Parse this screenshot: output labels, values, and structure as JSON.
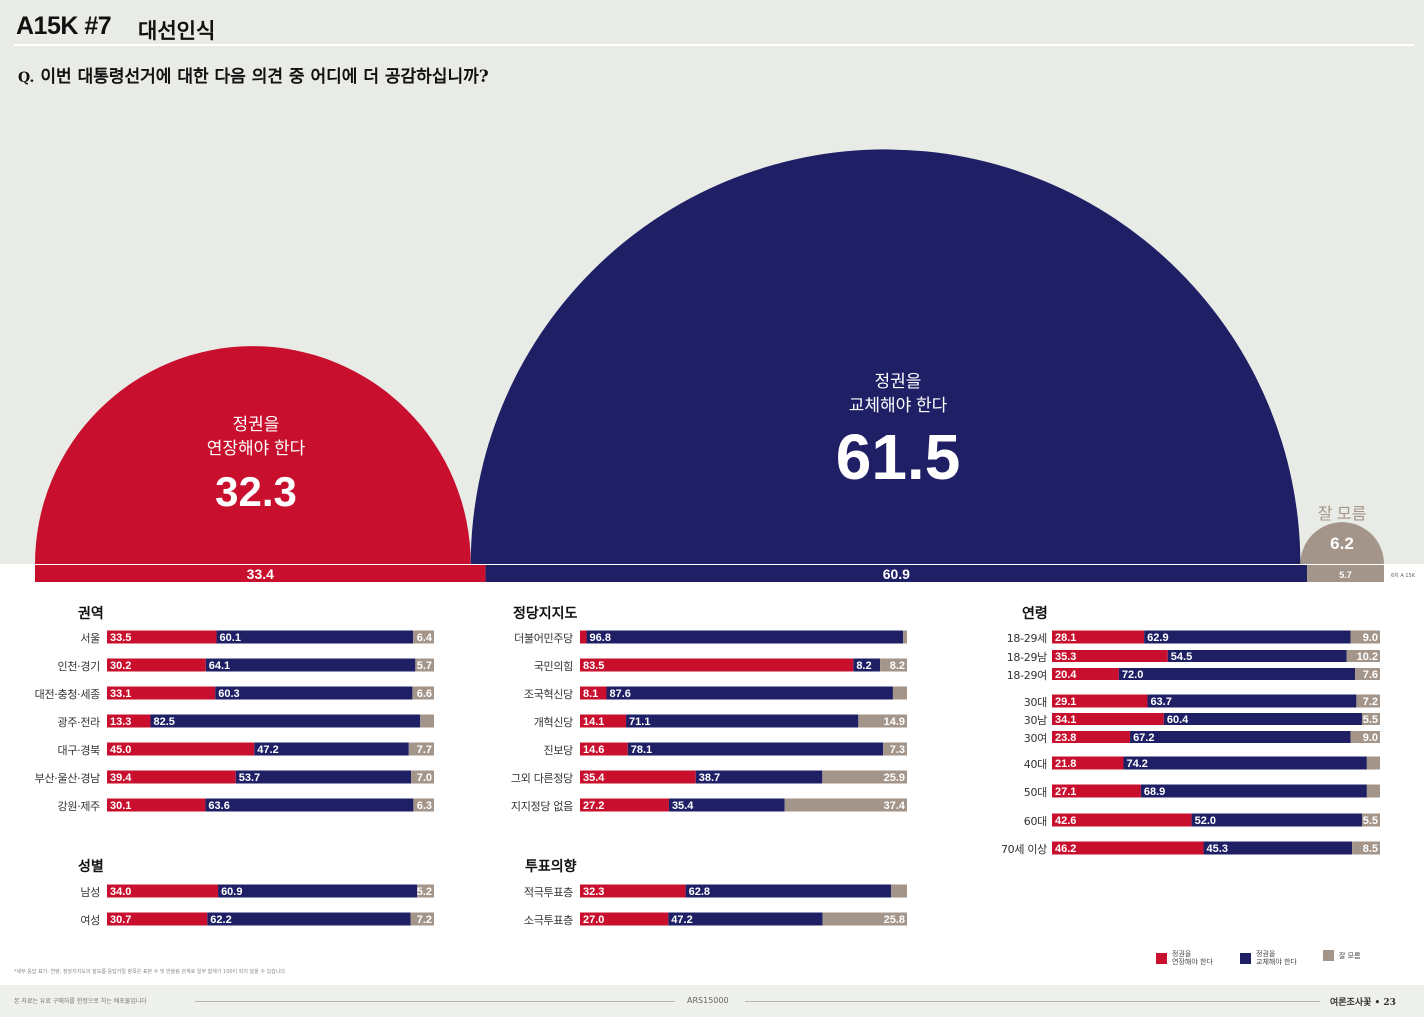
{
  "header": {
    "code": "A15K #7",
    "title": "대선인식"
  },
  "question": {
    "marker": "Q.",
    "text": "이번 대통령선거에 대한 다음 의견 중 어디에 더 공감하십니까?"
  },
  "colors": {
    "extend": "#c8102e",
    "replace": "#1f1f66",
    "unknown": "#a3958a",
    "background_top": "#e9ece6"
  },
  "chart_data": {
    "type": "bar",
    "title": "대선인식",
    "headline": {
      "extend": {
        "label_line1": "정권을",
        "label_line2": "연장해야 한다",
        "value": "32.3"
      },
      "replace": {
        "label_line1": "정권을",
        "label_line2": "교체해야 한다",
        "value": "61.5"
      },
      "unknown": {
        "label": "잘 모름",
        "value": "6.2"
      }
    },
    "previous": {
      "values": [
        33.4,
        60.9,
        5.7
      ],
      "labels": [
        "33.4",
        "60.9",
        "5.7"
      ],
      "note": "6차 A 15K"
    },
    "series_names": [
      "정권을 연장해야 한다",
      "정권을 교체해야 한다",
      "잘 모름"
    ],
    "groups": [
      {
        "title": "권역",
        "rows": [
          {
            "label": "서울",
            "values": [
              33.5,
              60.1,
              6.4
            ],
            "labels": [
              "33.5",
              "60.1",
              "6.4"
            ]
          },
          {
            "label": "인천·경기",
            "values": [
              30.2,
              64.1,
              5.7
            ],
            "labels": [
              "30.2",
              "64.1",
              "5.7"
            ]
          },
          {
            "label": "대전·충청·세종",
            "values": [
              33.1,
              60.3,
              6.6
            ],
            "labels": [
              "33.1",
              "60.3",
              "6.6"
            ]
          },
          {
            "label": "광주·전라",
            "values": [
              13.3,
              82.5,
              4.2
            ],
            "labels": [
              "13.3",
              "82.5",
              ""
            ]
          },
          {
            "label": "대구·경북",
            "values": [
              45.0,
              47.2,
              7.7
            ],
            "labels": [
              "45.0",
              "47.2",
              "7.7"
            ]
          },
          {
            "label": "부산·울산·경남",
            "values": [
              39.4,
              53.7,
              7.0
            ],
            "labels": [
              "39.4",
              "53.7",
              "7.0"
            ]
          },
          {
            "label": "강원·제주",
            "values": [
              30.1,
              63.6,
              6.3
            ],
            "labels": [
              "30.1",
              "63.6",
              "6.3"
            ]
          }
        ]
      },
      {
        "title": "정당지지도",
        "rows": [
          {
            "label": "더불어민주당",
            "values": [
              2.0,
              96.8,
              1.2
            ],
            "labels": [
              "",
              "96.8",
              ""
            ]
          },
          {
            "label": "국민의힘",
            "values": [
              83.5,
              8.2,
              8.2
            ],
            "labels": [
              "83.5",
              "8.2",
              "8.2"
            ]
          },
          {
            "label": "조국혁신당",
            "values": [
              8.1,
              87.6,
              4.3
            ],
            "labels": [
              "8.1",
              "87.6",
              ""
            ]
          },
          {
            "label": "개혁신당",
            "values": [
              14.1,
              71.1,
              14.9
            ],
            "labels": [
              "14.1",
              "71.1",
              "14.9"
            ]
          },
          {
            "label": "진보당",
            "values": [
              14.6,
              78.1,
              7.3
            ],
            "labels": [
              "14.6",
              "78.1",
              "7.3"
            ]
          },
          {
            "label": "그외 다른정당",
            "values": [
              35.4,
              38.7,
              25.9
            ],
            "labels": [
              "35.4",
              "38.7",
              "25.9"
            ]
          },
          {
            "label": "지지정당 없음",
            "values": [
              27.2,
              35.4,
              37.4
            ],
            "labels": [
              "27.2",
              "35.4",
              "37.4"
            ]
          }
        ]
      },
      {
        "title": "연령",
        "rows": [
          {
            "label": "18-29세",
            "values": [
              28.1,
              62.9,
              9.0
            ],
            "labels": [
              "28.1",
              "62.9",
              "9.0"
            ]
          },
          {
            "label": "18-29남",
            "values": [
              35.3,
              54.5,
              10.2
            ],
            "labels": [
              "35.3",
              "54.5",
              "10.2"
            ]
          },
          {
            "label": "18-29여",
            "values": [
              20.4,
              72.0,
              7.6
            ],
            "labels": [
              "20.4",
              "72.0",
              "7.6"
            ]
          },
          {
            "label": "30대",
            "values": [
              29.1,
              63.7,
              7.2
            ],
            "labels": [
              "29.1",
              "63.7",
              "7.2"
            ]
          },
          {
            "label": "30남",
            "values": [
              34.1,
              60.4,
              5.5
            ],
            "labels": [
              "34.1",
              "60.4",
              "5.5"
            ]
          },
          {
            "label": "30여",
            "values": [
              23.8,
              67.2,
              9.0
            ],
            "labels": [
              "23.8",
              "67.2",
              "9.0"
            ]
          },
          {
            "label": "40대",
            "values": [
              21.8,
              74.2,
              4.0
            ],
            "labels": [
              "21.8",
              "74.2",
              ""
            ]
          },
          {
            "label": "50대",
            "values": [
              27.1,
              68.9,
              4.0
            ],
            "labels": [
              "27.1",
              "68.9",
              ""
            ]
          },
          {
            "label": "60대",
            "values": [
              42.6,
              52.0,
              5.5
            ],
            "labels": [
              "42.6",
              "52.0",
              "5.5"
            ]
          },
          {
            "label": "70세 이상",
            "values": [
              46.2,
              45.3,
              8.5
            ],
            "labels": [
              "46.2",
              "45.3",
              "8.5"
            ]
          }
        ]
      },
      {
        "title": "성별",
        "rows": [
          {
            "label": "남성",
            "values": [
              34.0,
              60.9,
              5.2
            ],
            "labels": [
              "34.0",
              "60.9",
              "5.2"
            ]
          },
          {
            "label": "여성",
            "values": [
              30.7,
              62.2,
              7.2
            ],
            "labels": [
              "30.7",
              "62.2",
              "7.2"
            ]
          }
        ]
      },
      {
        "title": "투표의향",
        "rows": [
          {
            "label": "적극투표층",
            "values": [
              32.3,
              62.8,
              4.9
            ],
            "labels": [
              "32.3",
              "62.8",
              ""
            ]
          },
          {
            "label": "소극투표층",
            "values": [
              27.0,
              47.2,
              25.8
            ],
            "labels": [
              "27.0",
              "47.2",
              "25.8"
            ]
          }
        ]
      }
    ]
  },
  "legend": [
    {
      "line1": "정권을",
      "line2": "연장해야 한다"
    },
    {
      "line1": "정권을",
      "line2": "교체해야 한다"
    },
    {
      "line1": "잘 모름",
      "line2": ""
    }
  ],
  "footnote": "*세부 응답 표기: 연령, 정당지지도의 잘모름·응답거절 항목은 표본 수 및 반올림 관계로 일부 합계가 100이 되지 않을 수 있습니다.",
  "footer": {
    "left": "본 자료는 유료 구매자를 한정으로 하는 배포물입니다",
    "code": "ARS15000",
    "right": "여론조사꽃 • 23"
  }
}
